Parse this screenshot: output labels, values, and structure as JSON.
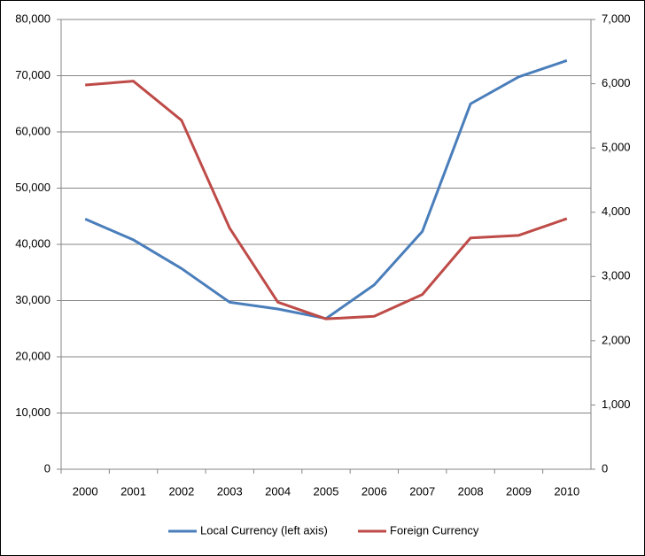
{
  "chart_data": {
    "type": "line",
    "categories": [
      "2000",
      "2001",
      "2002",
      "2003",
      "2004",
      "2005",
      "2006",
      "2007",
      "2008",
      "2009",
      "2010"
    ],
    "series": [
      {
        "name": "Local Currency (left axis)",
        "color": "#4a7ebb",
        "values": [
          44500,
          40800,
          35700,
          29700,
          28500,
          26800,
          32800,
          42300,
          65000,
          69800,
          72700
        ]
      },
      {
        "name": "Foreign Currency",
        "color": "#be4b48",
        "axis": "y2",
        "values": [
          5980,
          6040,
          5430,
          3750,
          2600,
          2340,
          2380,
          2720,
          3600,
          3640,
          3900
        ]
      }
    ],
    "ylim": [
      0,
      80000
    ],
    "yticks": [
      0,
      {
        "value": 10000,
        "label": "10,000"
      },
      {
        "value": 20000,
        "label": "20,000"
      },
      {
        "value": 30000,
        "label": "30,000"
      },
      {
        "value": 40000,
        "label": "40,000"
      },
      {
        "value": 50000,
        "label": "50,000"
      },
      {
        "value": 60000,
        "label": "60,000"
      },
      {
        "value": 70000,
        "label": "70,000"
      },
      {
        "value": 80000,
        "label": "80,000"
      }
    ],
    "y2lim": [
      0,
      7000
    ],
    "y2ticks": [
      0,
      {
        "value": 1000,
        "label": "1,000"
      },
      {
        "value": 2000,
        "label": "2,000"
      },
      {
        "value": 3000,
        "label": "3,000"
      },
      {
        "value": 4000,
        "label": "4,000"
      },
      {
        "value": 5000,
        "label": "5,000"
      },
      {
        "value": 6000,
        "label": "6,000"
      },
      {
        "value": 7000,
        "label": "7,000"
      }
    ],
    "grid": true,
    "legend": "bottom"
  }
}
